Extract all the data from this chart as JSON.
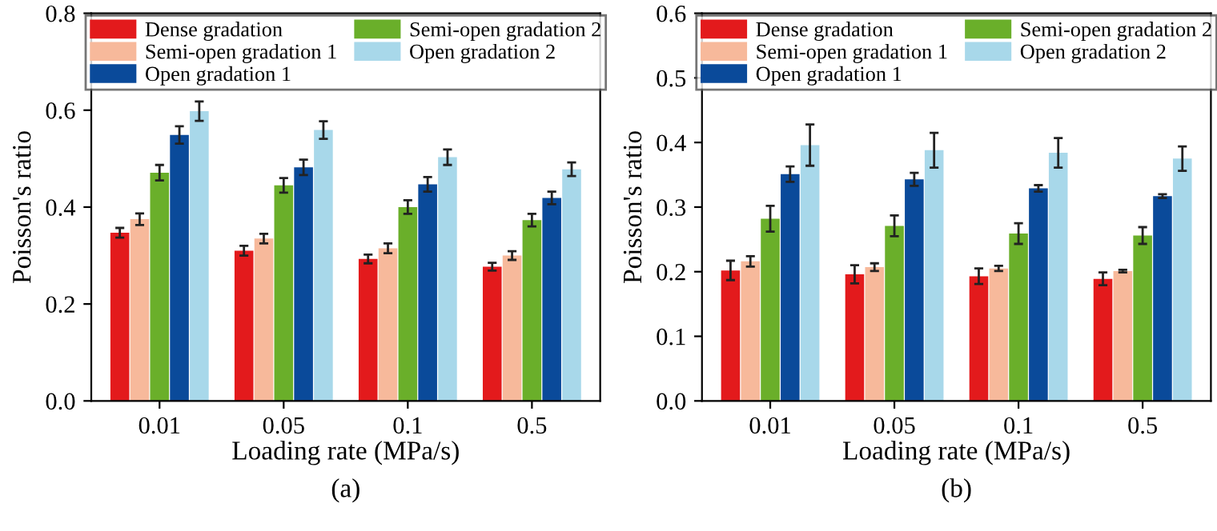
{
  "chart_data": [
    {
      "type": "bar",
      "xlabel": "Loading rate (MPa/s)",
      "ylabel": "Poisson's ratio",
      "categories": [
        "0.01",
        "0.05",
        "0.1",
        "0.5"
      ],
      "ylim": [
        0,
        0.8
      ],
      "yticks": [
        {
          "value": 0,
          "label": "0.0"
        },
        0.2,
        0.4,
        0.6,
        0.8
      ],
      "legend": "top",
      "grid": false,
      "annotations": [
        "(a)"
      ],
      "series": [
        {
          "name": "Dense gradation",
          "color": "#e31a1c",
          "values": [
            0.347,
            0.31,
            0.293,
            0.277
          ],
          "errors": [
            0.01,
            0.01,
            0.009,
            0.008
          ]
        },
        {
          "name": "Semi-open gradation 1",
          "color": "#f7b99b",
          "values": [
            0.375,
            0.335,
            0.315,
            0.3
          ],
          "errors": [
            0.012,
            0.01,
            0.01,
            0.009
          ]
        },
        {
          "name": "Semi-open gradation 2",
          "color": "#6aaf2a",
          "values": [
            0.471,
            0.445,
            0.4,
            0.373
          ],
          "errors": [
            0.016,
            0.015,
            0.014,
            0.013
          ]
        },
        {
          "name": "Open gradation 1",
          "color": "#0a4a9a",
          "values": [
            0.549,
            0.482,
            0.447,
            0.419
          ],
          "errors": [
            0.018,
            0.016,
            0.015,
            0.013
          ]
        },
        {
          "name": "Open gradation 2",
          "color": "#a8d8ea",
          "values": [
            0.598,
            0.559,
            0.503,
            0.478
          ],
          "errors": [
            0.02,
            0.018,
            0.016,
            0.014
          ]
        }
      ]
    },
    {
      "type": "bar",
      "xlabel": "Loading rate (MPa/s)",
      "ylabel": "Poisson's ratio",
      "categories": [
        "0.01",
        "0.05",
        "0.1",
        "0.5"
      ],
      "ylim": [
        0,
        0.6
      ],
      "yticks": [
        {
          "value": 0,
          "label": "0.0"
        },
        0.1,
        0.2,
        0.3,
        0.4,
        0.5,
        0.6
      ],
      "legend": "top",
      "grid": false,
      "annotations": [
        "(b)"
      ],
      "series": [
        {
          "name": "Dense gradation",
          "color": "#e31a1c",
          "values": [
            0.202,
            0.196,
            0.193,
            0.189
          ],
          "errors": [
            0.015,
            0.014,
            0.012,
            0.01
          ]
        },
        {
          "name": "Semi-open gradation 1",
          "color": "#f7b99b",
          "values": [
            0.216,
            0.207,
            0.205,
            0.201
          ],
          "errors": [
            0.008,
            0.006,
            0.004,
            0.002
          ]
        },
        {
          "name": "Semi-open gradation 2",
          "color": "#6aaf2a",
          "values": [
            0.282,
            0.271,
            0.259,
            0.256
          ],
          "errors": [
            0.02,
            0.016,
            0.016,
            0.013
          ]
        },
        {
          "name": "Open gradation 1",
          "color": "#0a4a9a",
          "values": [
            0.351,
            0.343,
            0.329,
            0.317
          ],
          "errors": [
            0.012,
            0.01,
            0.005,
            0.003
          ]
        },
        {
          "name": "Open gradation 2",
          "color": "#a8d8ea",
          "values": [
            0.396,
            0.388,
            0.384,
            0.375
          ],
          "errors": [
            0.032,
            0.027,
            0.023,
            0.019
          ]
        }
      ]
    }
  ]
}
